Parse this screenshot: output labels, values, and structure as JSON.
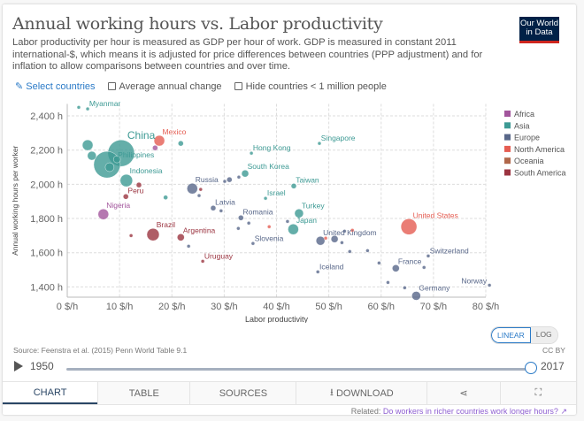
{
  "header": {
    "title": "Annual working hours vs. Labor productivity",
    "subtitle": "Labor productivity per hour is measured as GDP per hour of work. GDP is measured in constant 2011 international-$, which means it is adjusted for price differences between countries (PPP adjustment) and for inflation to allow comparisons between countries and over time.",
    "logo": "Our World in Data"
  },
  "controls": {
    "select": "Select countries",
    "avg": "Average annual change",
    "hide": "Hide countries < 1 million people"
  },
  "chart_data": {
    "type": "scatter",
    "xlabel": "Labor productivity",
    "ylabel": "Annual working hours per worker",
    "xlim": [
      0,
      80
    ],
    "ylim": [
      1340,
      2470
    ],
    "xticks": [
      0,
      10,
      20,
      30,
      40,
      50,
      60,
      70,
      80
    ],
    "xtick_labels": [
      "0 $/h",
      "10 $/h",
      "20 $/h",
      "30 $/h",
      "40 $/h",
      "50 $/h",
      "60 $/h",
      "70 $/h",
      "80 $/h"
    ],
    "yticks": [
      1400,
      1600,
      1800,
      2000,
      2200,
      2400
    ],
    "ytick_labels": [
      "1,400 h",
      "1,600 h",
      "1,800 h",
      "2,000 h",
      "2,200 h",
      "2,400 h"
    ],
    "grid": true,
    "legend_position": "right",
    "legend": [
      {
        "name": "Africa",
        "color": "#a2559c"
      },
      {
        "name": "Asia",
        "color": "#3d9a94"
      },
      {
        "name": "Europe",
        "color": "#586789"
      },
      {
        "name": "North America",
        "color": "#e55d52"
      },
      {
        "name": "Oceania",
        "color": "#b0674a"
      },
      {
        "name": "South America",
        "color": "#9b3440"
      }
    ],
    "points": [
      {
        "label": "",
        "region": "Asia",
        "x": 2.2,
        "y": 2450,
        "size": 2
      },
      {
        "label": "Myanmar",
        "region": "Asia",
        "x": 3.9,
        "y": 2441,
        "size": 2
      },
      {
        "label": "China",
        "region": "Asia",
        "x": 10.3,
        "y": 2182,
        "size": 15
      },
      {
        "label": "",
        "region": "Asia",
        "x": 7.6,
        "y": 2115,
        "size": 15
      },
      {
        "label": "Philippines",
        "region": "Asia",
        "x": 9.5,
        "y": 2146,
        "size": 4
      },
      {
        "label": "",
        "region": "Asia",
        "x": 8.1,
        "y": 2100,
        "size": 5
      },
      {
        "label": "",
        "region": "Asia",
        "x": 3.9,
        "y": 2229,
        "size": 6
      },
      {
        "label": "",
        "region": "Asia",
        "x": 4.7,
        "y": 2167,
        "size": 5
      },
      {
        "label": "Indonesia",
        "region": "Asia",
        "x": 11.3,
        "y": 2022,
        "size": 7
      },
      {
        "label": "Mexico",
        "region": "North America",
        "x": 17.6,
        "y": 2255,
        "size": 6
      },
      {
        "label": "",
        "region": "Africa",
        "x": 16.8,
        "y": 2213,
        "size": 3
      },
      {
        "label": "",
        "region": "Asia",
        "x": 21.7,
        "y": 2239,
        "size": 3
      },
      {
        "label": "Peru",
        "region": "South America",
        "x": 11.2,
        "y": 1928,
        "size": 3
      },
      {
        "label": "",
        "region": "South America",
        "x": 13.7,
        "y": 1996,
        "size": 3
      },
      {
        "label": "Nigeria",
        "region": "Africa",
        "x": 6.9,
        "y": 1825,
        "size": 6
      },
      {
        "label": "Brazil",
        "region": "South America",
        "x": 16.4,
        "y": 1706,
        "size": 7
      },
      {
        "label": "",
        "region": "South America",
        "x": 12.2,
        "y": 1700,
        "size": 2
      },
      {
        "label": "Argentina",
        "region": "South America",
        "x": 21.7,
        "y": 1690,
        "size": 4
      },
      {
        "label": "",
        "region": "Asia",
        "x": 18.8,
        "y": 1923,
        "size": 2.5
      },
      {
        "label": "",
        "region": "Europe",
        "x": 23.2,
        "y": 1638,
        "size": 2
      },
      {
        "label": "Uruguay",
        "region": "South America",
        "x": 25.9,
        "y": 1550,
        "size": 2
      },
      {
        "label": "Russia",
        "region": "Europe",
        "x": 23.9,
        "y": 1975,
        "size": 6
      },
      {
        "label": "",
        "region": "South America",
        "x": 25.5,
        "y": 1970,
        "size": 2
      },
      {
        "label": "",
        "region": "Europe",
        "x": 25.2,
        "y": 1934,
        "size": 2
      },
      {
        "label": "Latvia",
        "region": "Europe",
        "x": 27.9,
        "y": 1861,
        "size": 3
      },
      {
        "label": "",
        "region": "Europe",
        "x": 29.4,
        "y": 1845,
        "size": 2
      },
      {
        "label": "",
        "region": "Europe",
        "x": 30.1,
        "y": 2017,
        "size": 2
      },
      {
        "label": "",
        "region": "Europe",
        "x": 31.0,
        "y": 2027,
        "size": 3
      },
      {
        "label": "",
        "region": "Europe",
        "x": 32.8,
        "y": 2042,
        "size": 2
      },
      {
        "label": "South Korea",
        "region": "Asia",
        "x": 34.0,
        "y": 2063,
        "size": 4
      },
      {
        "label": "Hong Kong",
        "region": "Asia",
        "x": 35.2,
        "y": 2182,
        "size": 2
      },
      {
        "label": "Israel",
        "region": "Asia",
        "x": 37.9,
        "y": 1918,
        "size": 2
      },
      {
        "label": "Romania",
        "region": "Europe",
        "x": 33.2,
        "y": 1804,
        "size": 3
      },
      {
        "label": "",
        "region": "Europe",
        "x": 34.7,
        "y": 1773,
        "size": 2
      },
      {
        "label": "",
        "region": "Europe",
        "x": 32.7,
        "y": 1742,
        "size": 2
      },
      {
        "label": "",
        "region": "North America",
        "x": 38.6,
        "y": 1752,
        "size": 2
      },
      {
        "label": "Slovenia",
        "region": "Europe",
        "x": 35.5,
        "y": 1654,
        "size": 2
      },
      {
        "label": "Singapore",
        "region": "Asia",
        "x": 48.2,
        "y": 2239,
        "size": 2
      },
      {
        "label": "Taiwan",
        "region": "Asia",
        "x": 43.3,
        "y": 1990,
        "size": 3
      },
      {
        "label": "Turkey",
        "region": "Asia",
        "x": 44.3,
        "y": 1830,
        "size": 5
      },
      {
        "label": "Japan",
        "region": "Asia",
        "x": 43.2,
        "y": 1737,
        "size": 6
      },
      {
        "label": "",
        "region": "Europe",
        "x": 42.1,
        "y": 1783,
        "size": 2
      },
      {
        "label": "United Kingdom",
        "region": "Europe",
        "x": 48.4,
        "y": 1670,
        "size": 5
      },
      {
        "label": "",
        "region": "Europe",
        "x": 51.1,
        "y": 1680,
        "size": 4
      },
      {
        "label": "",
        "region": "North America",
        "x": 49.4,
        "y": 1685,
        "size": 2
      },
      {
        "label": "",
        "region": "Europe",
        "x": 53.0,
        "y": 1726,
        "size": 2
      },
      {
        "label": "",
        "region": "North America",
        "x": 54.5,
        "y": 1731,
        "size": 2
      },
      {
        "label": "",
        "region": "Europe",
        "x": 52.5,
        "y": 1659,
        "size": 2
      },
      {
        "label": "",
        "region": "Europe",
        "x": 54.0,
        "y": 1607,
        "size": 2
      },
      {
        "label": "",
        "region": "Europe",
        "x": 57.4,
        "y": 1612,
        "size": 2
      },
      {
        "label": "United States",
        "region": "North America",
        "x": 65.3,
        "y": 1752,
        "size": 9
      },
      {
        "label": "",
        "region": "Europe",
        "x": 59.6,
        "y": 1540,
        "size": 2
      },
      {
        "label": "Switzerland",
        "region": "Europe",
        "x": 69.0,
        "y": 1581,
        "size": 2
      },
      {
        "label": "France",
        "region": "Europe",
        "x": 62.8,
        "y": 1509,
        "size": 4
      },
      {
        "label": "",
        "region": "Europe",
        "x": 68.2,
        "y": 1514,
        "size": 2
      },
      {
        "label": "Iceland",
        "region": "Europe",
        "x": 47.9,
        "y": 1488,
        "size": 2
      },
      {
        "label": "",
        "region": "Europe",
        "x": 61.3,
        "y": 1426,
        "size": 2
      },
      {
        "label": "",
        "region": "Europe",
        "x": 64.5,
        "y": 1395,
        "size": 2
      },
      {
        "label": "Germany",
        "region": "Europe",
        "x": 66.7,
        "y": 1348,
        "size": 5
      },
      {
        "label": "Norway",
        "region": "Europe",
        "x": 80.7,
        "y": 1410,
        "size": 2
      }
    ]
  },
  "scale": {
    "linear": "LINEAR",
    "log": "LOG",
    "selected": "LINEAR"
  },
  "footer": {
    "source": "Source: Feenstra et al. (2015) Penn World Table 9.1",
    "license": "CC BY"
  },
  "timeline": {
    "start": "1950",
    "end": "2017",
    "progress": 1.0
  },
  "tabs": [
    {
      "label": "CHART"
    },
    {
      "label": "TABLE"
    },
    {
      "label": "SOURCES"
    },
    {
      "label": "DOWNLOAD"
    },
    {
      "label": ""
    },
    {
      "label": ""
    }
  ],
  "related": {
    "prefix": "Related:",
    "link": "Do workers in richer countries work longer hours?"
  }
}
